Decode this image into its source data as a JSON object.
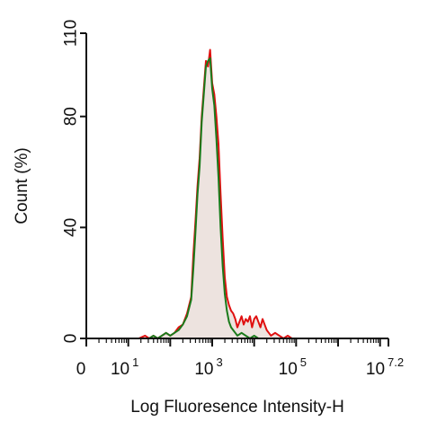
{
  "chart_data": {
    "type": "line",
    "xlabel": "Log Fluoresence Intensity-H",
    "ylabel": "Count  (%)",
    "x_scale": "log",
    "xlim": [
      0,
      7.2
    ],
    "ylim": [
      0,
      110
    ],
    "grid": false,
    "legend": "none",
    "y_ticks": [
      "0",
      "40",
      "80",
      "110"
    ],
    "x_ticks": [
      {
        "base": "0",
        "exp": ""
      },
      {
        "base": "10",
        "exp": "1"
      },
      {
        "base": "10",
        "exp": "3"
      },
      {
        "base": "10",
        "exp": "5"
      },
      {
        "base": "10",
        "exp": "7.2"
      }
    ],
    "series": [
      {
        "color": "#e01010",
        "fill": "#ede3df",
        "points": [
          [
            1.25,
            0
          ],
          [
            1.4,
            1
          ],
          [
            1.5,
            0
          ],
          [
            1.6,
            1
          ],
          [
            1.7,
            0
          ],
          [
            1.8,
            1
          ],
          [
            1.9,
            2
          ],
          [
            2.0,
            1
          ],
          [
            2.1,
            2
          ],
          [
            2.2,
            4
          ],
          [
            2.3,
            5
          ],
          [
            2.4,
            9
          ],
          [
            2.5,
            15
          ],
          [
            2.55,
            30
          ],
          [
            2.6,
            42
          ],
          [
            2.65,
            55
          ],
          [
            2.7,
            65
          ],
          [
            2.75,
            80
          ],
          [
            2.8,
            90
          ],
          [
            2.85,
            100
          ],
          [
            2.9,
            98
          ],
          [
            2.95,
            104
          ],
          [
            3.0,
            92
          ],
          [
            3.05,
            88
          ],
          [
            3.1,
            80
          ],
          [
            3.15,
            70
          ],
          [
            3.2,
            52
          ],
          [
            3.25,
            36
          ],
          [
            3.3,
            22
          ],
          [
            3.35,
            15
          ],
          [
            3.4,
            12
          ],
          [
            3.45,
            10
          ],
          [
            3.5,
            9
          ],
          [
            3.55,
            7
          ],
          [
            3.6,
            4
          ],
          [
            3.65,
            6
          ],
          [
            3.7,
            8
          ],
          [
            3.75,
            5
          ],
          [
            3.8,
            7
          ],
          [
            3.85,
            6
          ],
          [
            3.9,
            8
          ],
          [
            3.95,
            4
          ],
          [
            4.0,
            7
          ],
          [
            4.05,
            8
          ],
          [
            4.1,
            6
          ],
          [
            4.15,
            4
          ],
          [
            4.2,
            7
          ],
          [
            4.25,
            5
          ],
          [
            4.3,
            3
          ],
          [
            4.35,
            2
          ],
          [
            4.4,
            1
          ],
          [
            4.5,
            2
          ],
          [
            4.6,
            1
          ],
          [
            4.7,
            0
          ],
          [
            4.8,
            1
          ],
          [
            4.9,
            0
          ]
        ]
      },
      {
        "color": "#1a7a1a",
        "points": [
          [
            1.5,
            0
          ],
          [
            1.6,
            1
          ],
          [
            1.7,
            0
          ],
          [
            1.8,
            1
          ],
          [
            1.9,
            2
          ],
          [
            2.0,
            1
          ],
          [
            2.1,
            2
          ],
          [
            2.2,
            3
          ],
          [
            2.3,
            5
          ],
          [
            2.4,
            8
          ],
          [
            2.5,
            14
          ],
          [
            2.55,
            25
          ],
          [
            2.6,
            38
          ],
          [
            2.65,
            52
          ],
          [
            2.7,
            62
          ],
          [
            2.75,
            78
          ],
          [
            2.8,
            88
          ],
          [
            2.85,
            98
          ],
          [
            2.9,
            100
          ],
          [
            2.95,
            101
          ],
          [
            3.0,
            90
          ],
          [
            3.05,
            84
          ],
          [
            3.1,
            72
          ],
          [
            3.15,
            58
          ],
          [
            3.2,
            40
          ],
          [
            3.25,
            26
          ],
          [
            3.3,
            16
          ],
          [
            3.35,
            10
          ],
          [
            3.4,
            6
          ],
          [
            3.45,
            4
          ],
          [
            3.5,
            3
          ],
          [
            3.55,
            2
          ],
          [
            3.6,
            1
          ],
          [
            3.7,
            2
          ],
          [
            3.8,
            1
          ],
          [
            3.9,
            0
          ],
          [
            4.0,
            1
          ],
          [
            4.1,
            0
          ]
        ]
      }
    ]
  }
}
